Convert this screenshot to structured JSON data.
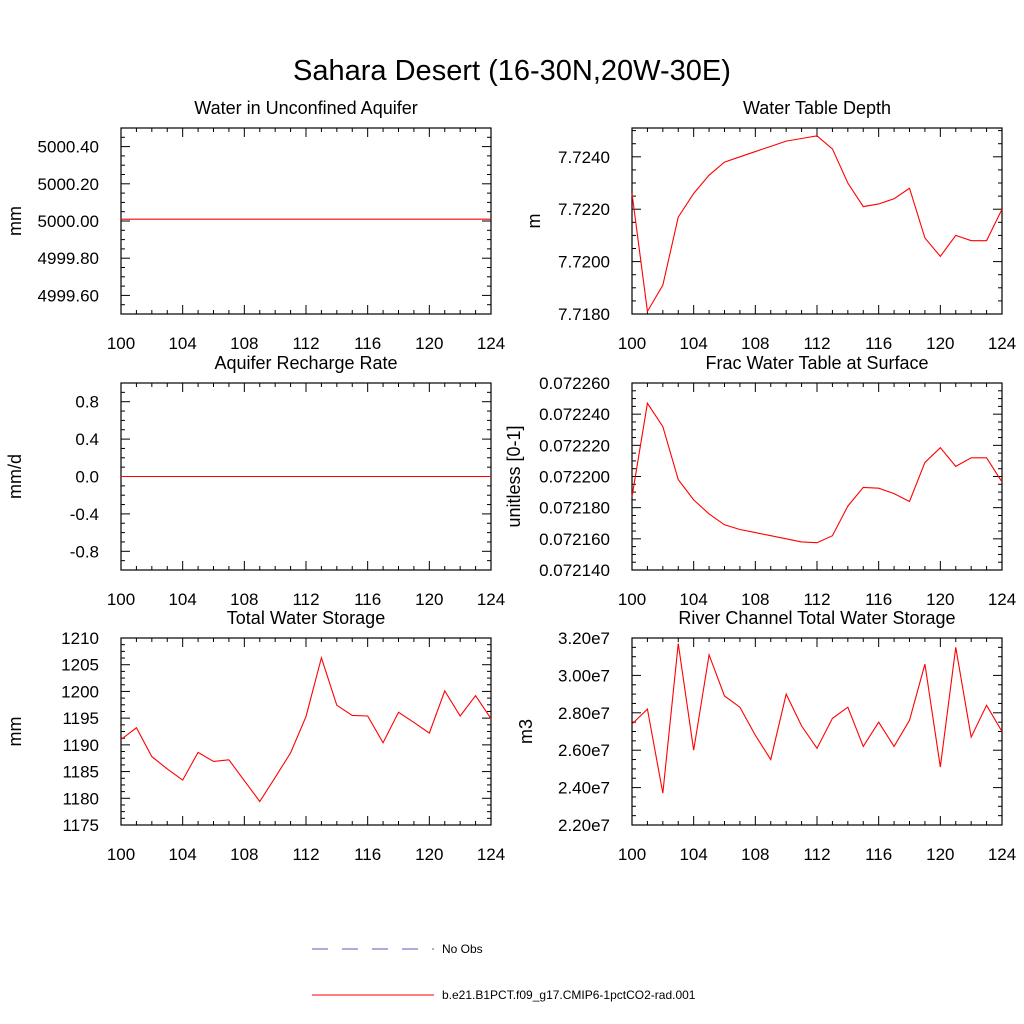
{
  "figure": {
    "title": "Sahara Desert (16-30N,20W-30E)"
  },
  "legend": {
    "entries": [
      {
        "label": "No Obs",
        "color": "#5a5ab4",
        "style": "dashed"
      },
      {
        "label": "b.e21.B1PCT.f09_g17.CMIP6-1pctCO2-rad.001",
        "color": "#ff0000",
        "style": "solid"
      }
    ]
  },
  "chart_data": [
    {
      "type": "line",
      "title": "Water in Unconfined Aquifer",
      "ylabel": "mm",
      "xlim": [
        100,
        124
      ],
      "ylim": [
        4999.5,
        5000.5
      ],
      "xticks": [
        100,
        104,
        108,
        112,
        116,
        120,
        124
      ],
      "xtick_labels": [
        "100",
        "104",
        "108",
        "112",
        "116",
        "120",
        "124"
      ],
      "yticks": [
        4999.6,
        4999.8,
        5000.0,
        5000.2,
        5000.4
      ],
      "ytick_labels": [
        "4999.60",
        "4999.80",
        "5000.00",
        "5000.20",
        "5000.40"
      ],
      "series": [
        {
          "name": "b.e21.B1PCT.f09_g17.CMIP6-1pctCO2-rad.001",
          "color": "#ff0000",
          "x": [
            100,
            101,
            102,
            103,
            104,
            105,
            106,
            107,
            108,
            109,
            110,
            111,
            112,
            113,
            114,
            115,
            116,
            117,
            118,
            119,
            120,
            121,
            122,
            123,
            124
          ],
          "y": [
            5000.01,
            5000.01,
            5000.01,
            5000.01,
            5000.01,
            5000.01,
            5000.01,
            5000.01,
            5000.01,
            5000.01,
            5000.01,
            5000.01,
            5000.01,
            5000.01,
            5000.01,
            5000.01,
            5000.01,
            5000.01,
            5000.01,
            5000.01,
            5000.01,
            5000.01,
            5000.01,
            5000.01,
            5000.01
          ]
        }
      ]
    },
    {
      "type": "line",
      "title": "Water Table Depth",
      "ylabel": "m",
      "xlim": [
        100,
        124
      ],
      "ylim": [
        7.718,
        7.7251
      ],
      "xticks": [
        100,
        104,
        108,
        112,
        116,
        120,
        124
      ],
      "xtick_labels": [
        "100",
        "104",
        "108",
        "112",
        "116",
        "120",
        "124"
      ],
      "yticks": [
        7.718,
        7.72,
        7.722,
        7.724
      ],
      "ytick_labels": [
        "7.7180",
        "7.7200",
        "7.7220",
        "7.7240"
      ],
      "series": [
        {
          "name": "b.e21.B1PCT.f09_g17.CMIP6-1pctCO2-rad.001",
          "color": "#ff0000",
          "x": [
            100,
            101,
            102,
            103,
            104,
            105,
            106,
            107,
            108,
            109,
            110,
            111,
            112,
            113,
            114,
            115,
            116,
            117,
            118,
            119,
            120,
            121,
            122,
            123,
            124
          ],
          "y": [
            7.7226,
            7.7181,
            7.7191,
            7.7217,
            7.7226,
            7.7233,
            7.7238,
            7.724,
            7.7242,
            7.7244,
            7.7246,
            7.7247,
            7.7248,
            7.7243,
            7.723,
            7.7221,
            7.7222,
            7.7224,
            7.7228,
            7.7209,
            7.7202,
            7.721,
            7.7208,
            7.7208,
            7.722
          ]
        }
      ]
    },
    {
      "type": "line",
      "title": "Aquifer Recharge Rate",
      "ylabel": "mm/d",
      "xlim": [
        100,
        124
      ],
      "ylim": [
        -1.0,
        1.0
      ],
      "xticks": [
        100,
        104,
        108,
        112,
        116,
        120,
        124
      ],
      "xtick_labels": [
        "100",
        "104",
        "108",
        "112",
        "116",
        "120",
        "124"
      ],
      "yticks": [
        -0.8,
        -0.4,
        0.0,
        0.4,
        0.8
      ],
      "ytick_labels": [
        "-0.8",
        "-0.4",
        "0.0",
        "0.4",
        "0.8"
      ],
      "series": [
        {
          "name": "b.e21.B1PCT.f09_g17.CMIP6-1pctCO2-rad.001",
          "color": "#ff0000",
          "x": [
            100,
            101,
            102,
            103,
            104,
            105,
            106,
            107,
            108,
            109,
            110,
            111,
            112,
            113,
            114,
            115,
            116,
            117,
            118,
            119,
            120,
            121,
            122,
            123,
            124
          ],
          "y": [
            0,
            0,
            0,
            0,
            0,
            0,
            0,
            0,
            0,
            0,
            0,
            0,
            0,
            0,
            0,
            0,
            0,
            0,
            0,
            0,
            0,
            0,
            0,
            0,
            0
          ]
        }
      ]
    },
    {
      "type": "line",
      "title": "Frac Water Table at Surface",
      "ylabel": "unitless [0-1]",
      "xlim": [
        100,
        124
      ],
      "ylim": [
        0.07214,
        0.07226
      ],
      "xticks": [
        100,
        104,
        108,
        112,
        116,
        120,
        124
      ],
      "xtick_labels": [
        "100",
        "104",
        "108",
        "112",
        "116",
        "120",
        "124"
      ],
      "yticks": [
        0.07214,
        0.07216,
        0.07218,
        0.0722,
        0.07222,
        0.07224,
        0.07226
      ],
      "ytick_labels": [
        "0.072140",
        "0.072160",
        "0.072180",
        "0.072200",
        "0.072220",
        "0.072240",
        "0.072260"
      ],
      "series": [
        {
          "name": "b.e21.B1PCT.f09_g17.CMIP6-1pctCO2-rad.001",
          "color": "#ff0000",
          "x": [
            100,
            101,
            102,
            103,
            104,
            105,
            106,
            107,
            108,
            109,
            110,
            111,
            112,
            113,
            114,
            115,
            116,
            117,
            118,
            119,
            120,
            121,
            122,
            123,
            124
          ],
          "y": [
            0.072187,
            0.072247,
            0.072232,
            0.072198,
            0.072185,
            0.072176,
            0.072169,
            0.072166,
            0.072164,
            0.072162,
            0.07216,
            0.072158,
            0.0721575,
            0.072162,
            0.072181,
            0.072193,
            0.0721925,
            0.072189,
            0.072184,
            0.072209,
            0.0722185,
            0.0722065,
            0.072212,
            0.072212,
            0.0721965
          ]
        }
      ]
    },
    {
      "type": "line",
      "title": "Total Water Storage",
      "ylabel": "mm",
      "xlim": [
        100,
        124
      ],
      "ylim": [
        1175,
        1210
      ],
      "xticks": [
        100,
        104,
        108,
        112,
        116,
        120,
        124
      ],
      "xtick_labels": [
        "100",
        "104",
        "108",
        "112",
        "116",
        "120",
        "124"
      ],
      "yticks": [
        1175,
        1180,
        1185,
        1190,
        1195,
        1200,
        1205,
        1210
      ],
      "ytick_labels": [
        "1175",
        "1180",
        "1185",
        "1190",
        "1195",
        "1200",
        "1205",
        "1210"
      ],
      "series": [
        {
          "name": "b.e21.B1PCT.f09_g17.CMIP6-1pctCO2-rad.001",
          "color": "#ff0000",
          "x": [
            100,
            101,
            102,
            103,
            104,
            105,
            106,
            107,
            108,
            109,
            110,
            111,
            112,
            113,
            114,
            115,
            116,
            117,
            118,
            119,
            120,
            121,
            122,
            123,
            124
          ],
          "y": [
            1191,
            1193.2,
            1187.8,
            1185.5,
            1183.4,
            1188.6,
            1186.9,
            1187.2,
            1183.3,
            1179.4,
            1183.9,
            1188.5,
            1195.3,
            1206.3,
            1197.4,
            1195.5,
            1195.4,
            1190.4,
            1196.1,
            1194.2,
            1192.2,
            1200.1,
            1195.4,
            1199.2,
            1194.9
          ]
        }
      ]
    },
    {
      "type": "line",
      "title": "River Channel Total Water Storage",
      "ylabel": "m3",
      "xlim": [
        100,
        124
      ],
      "ylim": [
        22000000,
        32000000
      ],
      "xticks": [
        100,
        104,
        108,
        112,
        116,
        120,
        124
      ],
      "xtick_labels": [
        "100",
        "104",
        "108",
        "112",
        "116",
        "120",
        "124"
      ],
      "yticks": [
        22000000,
        24000000,
        26000000,
        28000000,
        30000000,
        32000000
      ],
      "ytick_labels": [
        "2.20e7",
        "2.40e7",
        "2.60e7",
        "2.80e7",
        "3.00e7",
        "3.20e7"
      ],
      "series": [
        {
          "name": "b.e21.B1PCT.f09_g17.CMIP6-1pctCO2-rad.001",
          "color": "#ff0000",
          "x": [
            100,
            101,
            102,
            103,
            104,
            105,
            106,
            107,
            108,
            109,
            110,
            111,
            112,
            113,
            114,
            115,
            116,
            117,
            118,
            119,
            120,
            121,
            122,
            123,
            124
          ],
          "y": [
            27400000,
            28200000,
            23700000,
            31700000,
            26000000,
            31100000,
            28900000,
            28300000,
            26800000,
            25500000,
            29000000,
            27300000,
            26100000,
            27700000,
            28300000,
            26200000,
            27500000,
            26200000,
            27600000,
            30600000,
            25100000,
            31500000,
            26700000,
            28400000,
            27000000
          ]
        }
      ]
    }
  ]
}
